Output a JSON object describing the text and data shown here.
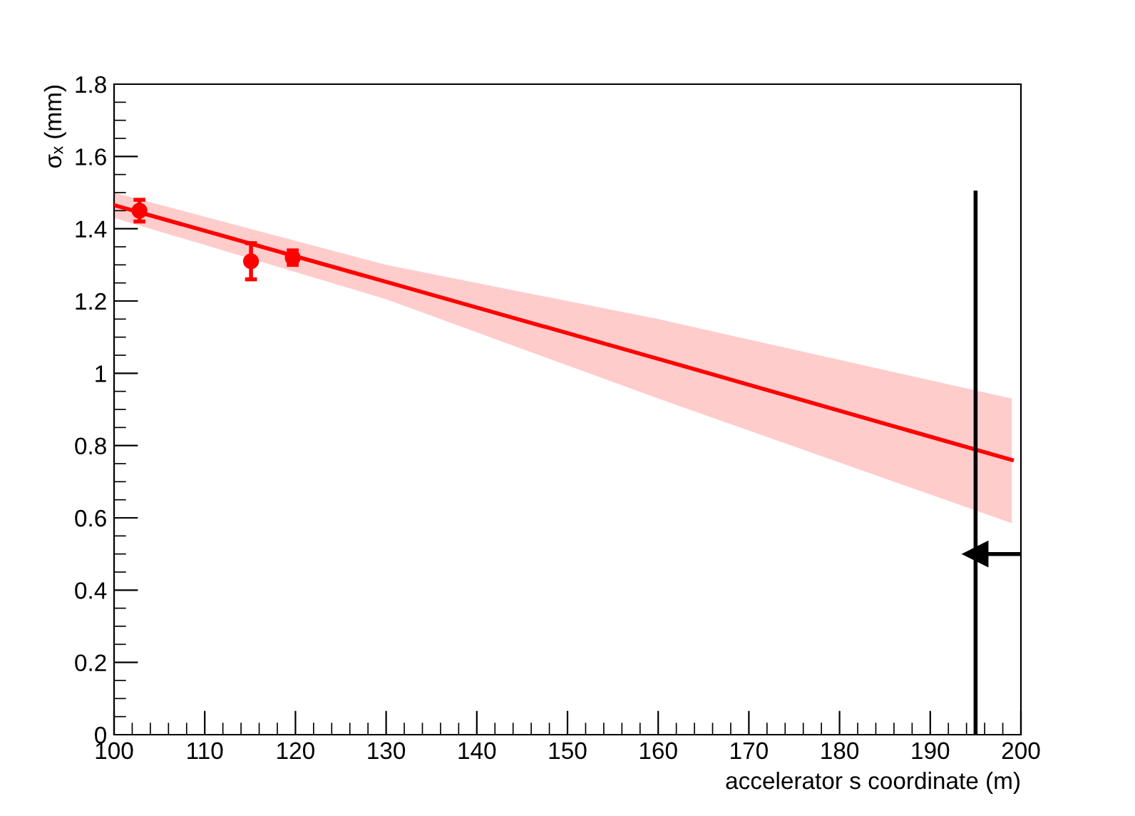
{
  "chart_data": {
    "type": "scatter",
    "xlabel": "accelerator s coordinate (m)",
    "ylabel": "σₓ (mm)",
    "xlim": [
      100,
      200
    ],
    "ylim": [
      0,
      1.8
    ],
    "xticks": [
      100,
      110,
      120,
      130,
      140,
      150,
      160,
      170,
      180,
      190,
      200
    ],
    "yticks": [
      0,
      {
        "value": 0.2,
        "label": "0.2"
      },
      {
        "value": 0.4,
        "label": "0.4"
      },
      {
        "value": 0.6,
        "label": "0.6"
      },
      {
        "value": 0.8,
        "label": "0.8"
      },
      1,
      {
        "value": 1.2,
        "label": "1.2"
      },
      {
        "value": 1.4,
        "label": "1.4"
      },
      {
        "value": 1.6,
        "label": "1.6"
      },
      {
        "value": 1.8,
        "label": "1.8"
      }
    ],
    "grid": false,
    "legend": false,
    "series": [
      {
        "type": "line",
        "color": "#ff0000",
        "marker": "none",
        "x": [
          100,
          130,
          160,
          199
        ],
        "values": [
          1.465,
          1.253,
          1.04,
          0.76
        ],
        "lower": [
          1.43,
          1.205,
          0.93,
          0.585
        ],
        "upper": [
          1.5,
          1.3,
          1.15,
          0.93
        ]
      },
      {
        "color": "#ff0000",
        "marker": "circle",
        "x": [
          102.8,
          115.1,
          119.7
        ],
        "values": [
          1.45,
          1.31,
          1.32
        ],
        "errors": [
          0.03,
          0.05,
          0.02
        ]
      },
      {
        "type": "line",
        "color": "#000000",
        "marker": "none",
        "x": [
          195,
          195
        ],
        "values": [
          0,
          1.5
        ]
      },
      {
        "type": "line",
        "color": "#000000",
        "marker": "triangle",
        "x": [
          195,
          200
        ],
        "values": [
          0.5,
          0.5
        ]
      }
    ]
  }
}
